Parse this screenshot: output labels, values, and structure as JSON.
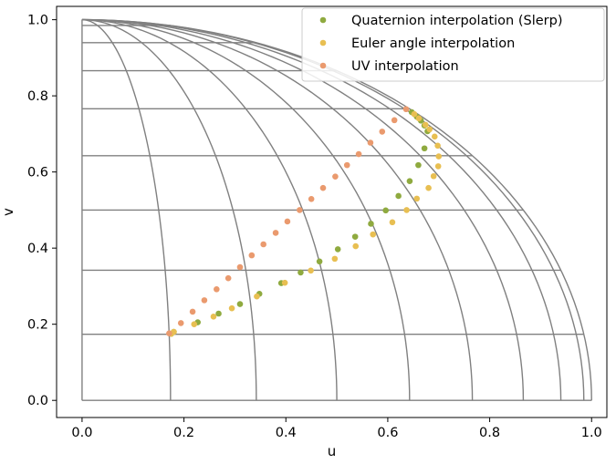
{
  "chart_data": {
    "type": "scatter",
    "xlabel": "u",
    "ylabel": "v",
    "xlim": [
      -0.05,
      1.03
    ],
    "ylim": [
      -0.045,
      1.035
    ],
    "x_ticks": [
      "0.0",
      "0.2",
      "0.4",
      "0.6",
      "0.8",
      "1.0"
    ],
    "y_ticks": [
      "0.0",
      "0.2",
      "0.4",
      "0.6",
      "0.8",
      "1.0"
    ],
    "grid": false,
    "legend_placement": "top-right",
    "background_mesh": {
      "description": "quarter-sphere parameter grid",
      "horizontal_lines_v": [
        0.1736,
        0.342,
        0.5,
        0.6428,
        0.766,
        0.866,
        0.9397,
        0.9848
      ],
      "meridian_radii": [
        0.1736,
        0.342,
        0.5,
        0.6428,
        0.766,
        0.866,
        0.9397,
        0.9848,
        1.0
      ],
      "color": "#808080"
    },
    "series": [
      {
        "name": "Quaternion interpolation (Slerp)",
        "color": "#8faa3f",
        "points": [
          [
            0.175,
            0.175
          ],
          [
            0.18,
            0.18
          ],
          [
            0.227,
            0.205
          ],
          [
            0.268,
            0.228
          ],
          [
            0.31,
            0.253
          ],
          [
            0.348,
            0.28
          ],
          [
            0.391,
            0.308
          ],
          [
            0.429,
            0.336
          ],
          [
            0.466,
            0.365
          ],
          [
            0.502,
            0.397
          ],
          [
            0.536,
            0.43
          ],
          [
            0.567,
            0.464
          ],
          [
            0.596,
            0.499
          ],
          [
            0.621,
            0.537
          ],
          [
            0.643,
            0.576
          ],
          [
            0.66,
            0.618
          ],
          [
            0.672,
            0.662
          ],
          [
            0.678,
            0.707
          ],
          [
            0.672,
            0.722
          ],
          [
            0.665,
            0.735
          ],
          [
            0.657,
            0.745
          ],
          [
            0.647,
            0.757
          ]
        ]
      },
      {
        "name": "Euler angle interpolation",
        "color": "#e8bf52",
        "points": [
          [
            0.175,
            0.175
          ],
          [
            0.18,
            0.18
          ],
          [
            0.22,
            0.2
          ],
          [
            0.258,
            0.22
          ],
          [
            0.294,
            0.242
          ],
          [
            0.343,
            0.273
          ],
          [
            0.398,
            0.309
          ],
          [
            0.449,
            0.341
          ],
          [
            0.496,
            0.372
          ],
          [
            0.537,
            0.405
          ],
          [
            0.571,
            0.436
          ],
          [
            0.609,
            0.468
          ],
          [
            0.637,
            0.5
          ],
          [
            0.657,
            0.53
          ],
          [
            0.68,
            0.558
          ],
          [
            0.69,
            0.589
          ],
          [
            0.699,
            0.615
          ],
          [
            0.7,
            0.641
          ],
          [
            0.698,
            0.669
          ],
          [
            0.692,
            0.693
          ],
          [
            0.682,
            0.712
          ],
          [
            0.674,
            0.724
          ],
          [
            0.661,
            0.741
          ],
          [
            0.652,
            0.752
          ]
        ]
      },
      {
        "name": "UV interpolation",
        "color": "#ea9a6e",
        "points": [
          [
            0.171,
            0.176
          ],
          [
            0.194,
            0.203
          ],
          [
            0.217,
            0.233
          ],
          [
            0.24,
            0.263
          ],
          [
            0.264,
            0.292
          ],
          [
            0.287,
            0.321
          ],
          [
            0.31,
            0.35
          ],
          [
            0.333,
            0.381
          ],
          [
            0.356,
            0.41
          ],
          [
            0.38,
            0.44
          ],
          [
            0.403,
            0.47
          ],
          [
            0.427,
            0.5
          ],
          [
            0.45,
            0.529
          ],
          [
            0.473,
            0.558
          ],
          [
            0.497,
            0.588
          ],
          [
            0.52,
            0.618
          ],
          [
            0.543,
            0.647
          ],
          [
            0.566,
            0.677
          ],
          [
            0.589,
            0.706
          ],
          [
            0.613,
            0.736
          ],
          [
            0.636,
            0.765
          ]
        ]
      }
    ]
  }
}
